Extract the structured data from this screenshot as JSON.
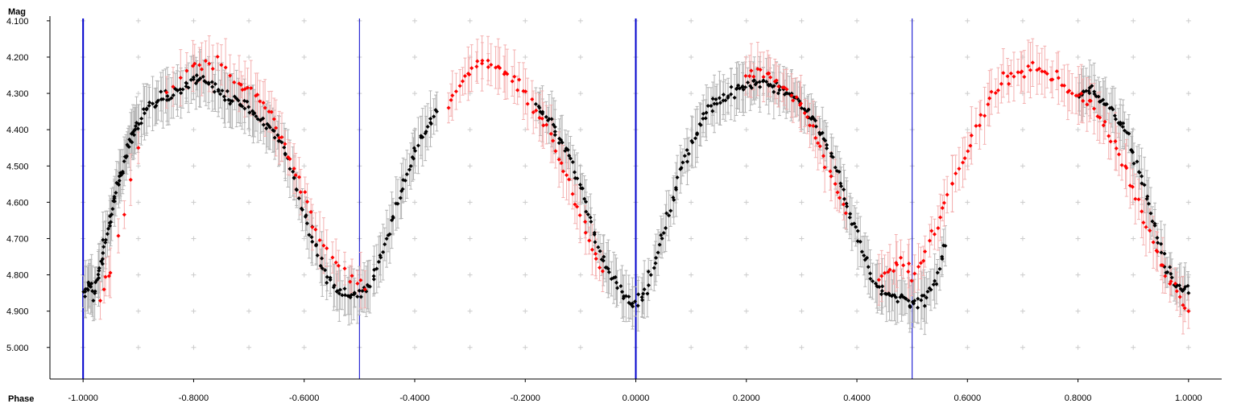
{
  "chart_data": {
    "type": "scatter",
    "title": "",
    "xlabel": "Phase",
    "ylabel": "Mag",
    "xlim": [
      -1.06,
      1.06
    ],
    "ylim": [
      4.087,
      5.087
    ],
    "y_inverted": true,
    "x_ticks": [
      -1.0,
      -0.8,
      -0.6,
      -0.4,
      -0.2,
      0.0,
      0.2,
      0.4,
      0.6,
      0.8,
      1.0
    ],
    "x_tick_labels": [
      "-1.0000",
      "-0.8000",
      "-0.6000",
      "-0.4000",
      "-0.2000",
      "0.0000",
      "0.2000",
      "0.4000",
      "0.6000",
      "0.8000",
      "1.0000"
    ],
    "y_ticks": [
      4.1,
      4.2,
      4.3,
      4.4,
      4.5,
      4.6,
      4.7,
      4.8,
      4.9,
      5.0
    ],
    "y_tick_labels": [
      "4.100",
      "4.200",
      "4.300",
      "4.400",
      "4.500",
      "4.600",
      "4.700",
      "4.800",
      "4.900",
      "5.000"
    ],
    "grid": "plus-markers",
    "legend": "none",
    "colors": {
      "series_black": "#000000",
      "series_red": "#ff0000",
      "error_black": "#b4b4b4",
      "error_red": "#f4b0b0",
      "marker_line": "#0000cc",
      "grid_marker": "#cccccc",
      "axis": "#000000"
    },
    "vertical_markers": [
      -1.0,
      -0.5,
      0.0,
      0.5
    ],
    "light_curve": {
      "description_model": "eclipsing-binary phase curve",
      "maxima": [
        {
          "phase": -0.77,
          "mag": 4.27
        },
        {
          "phase": -0.27,
          "mag": 4.25
        },
        {
          "phase": 0.23,
          "mag": 4.27
        },
        {
          "phase": 0.73,
          "mag": 4.25
        }
      ],
      "minima": [
        {
          "phase": -1.0,
          "mag": 4.88
        },
        {
          "phase": -0.5,
          "mag": 4.83
        },
        {
          "phase": 0.0,
          "mag": 4.88
        },
        {
          "phase": 0.5,
          "mag": 4.83
        }
      ]
    },
    "series": [
      {
        "color": "black",
        "points": [
          [
            -1.0,
            4.87
          ],
          [
            -0.99,
            4.82
          ],
          [
            -0.98,
            4.86
          ],
          [
            -0.97,
            4.78
          ],
          [
            -0.96,
            4.71
          ],
          [
            -0.95,
            4.64
          ],
          [
            -0.94,
            4.57
          ],
          [
            -0.93,
            4.52
          ],
          [
            -0.92,
            4.45
          ],
          [
            -0.91,
            4.42
          ],
          [
            -0.9,
            4.38
          ],
          [
            -0.88,
            4.34
          ],
          [
            -0.86,
            4.31
          ],
          [
            -0.84,
            4.3
          ],
          [
            -0.82,
            4.28
          ],
          [
            -0.8,
            4.26
          ],
          [
            -0.78,
            4.27
          ],
          [
            -0.76,
            4.29
          ],
          [
            -0.74,
            4.31
          ],
          [
            -0.72,
            4.32
          ],
          [
            -0.7,
            4.34
          ],
          [
            -0.68,
            4.37
          ],
          [
            -0.66,
            4.39
          ],
          [
            -0.64,
            4.44
          ],
          [
            -0.62,
            4.52
          ],
          [
            -0.6,
            4.63
          ],
          [
            -0.58,
            4.72
          ],
          [
            -0.56,
            4.8
          ],
          [
            -0.54,
            4.84
          ],
          [
            -0.52,
            4.86
          ],
          [
            -0.5,
            4.85
          ],
          [
            -0.48,
            4.83
          ],
          [
            -0.46,
            4.75
          ],
          [
            -0.44,
            4.65
          ],
          [
            -0.42,
            4.55
          ],
          [
            -0.4,
            4.46
          ],
          [
            -0.38,
            4.4
          ],
          [
            -0.36,
            4.35
          ],
          [
            -0.18,
            4.33
          ],
          [
            -0.16,
            4.37
          ],
          [
            -0.14,
            4.42
          ],
          [
            -0.12,
            4.47
          ],
          [
            -0.1,
            4.56
          ],
          [
            -0.08,
            4.66
          ],
          [
            -0.06,
            4.75
          ],
          [
            -0.04,
            4.81
          ],
          [
            -0.02,
            4.86
          ],
          [
            0.0,
            4.88
          ],
          [
            0.02,
            4.84
          ],
          [
            0.04,
            4.74
          ],
          [
            0.06,
            4.63
          ],
          [
            0.08,
            4.52
          ],
          [
            0.1,
            4.44
          ],
          [
            0.12,
            4.37
          ],
          [
            0.14,
            4.33
          ],
          [
            0.16,
            4.31
          ],
          [
            0.18,
            4.29
          ],
          [
            0.2,
            4.28
          ],
          [
            0.22,
            4.27
          ],
          [
            0.24,
            4.28
          ],
          [
            0.26,
            4.29
          ],
          [
            0.28,
            4.31
          ],
          [
            0.3,
            4.33
          ],
          [
            0.32,
            4.37
          ],
          [
            0.34,
            4.42
          ],
          [
            0.36,
            4.5
          ],
          [
            0.38,
            4.6
          ],
          [
            0.4,
            4.69
          ],
          [
            0.42,
            4.78
          ],
          [
            0.44,
            4.84
          ],
          [
            0.46,
            4.86
          ],
          [
            0.48,
            4.87
          ],
          [
            0.5,
            4.88
          ],
          [
            0.52,
            4.87
          ],
          [
            0.54,
            4.82
          ],
          [
            0.56,
            4.72
          ],
          [
            0.8,
            4.3
          ],
          [
            0.82,
            4.29
          ],
          [
            0.84,
            4.31
          ],
          [
            0.86,
            4.34
          ],
          [
            0.88,
            4.39
          ],
          [
            0.9,
            4.46
          ],
          [
            0.92,
            4.56
          ],
          [
            0.94,
            4.68
          ],
          [
            0.96,
            4.78
          ],
          [
            0.98,
            4.83
          ],
          [
            1.0,
            4.85
          ]
        ]
      },
      {
        "color": "red",
        "points": [
          [
            -0.97,
            4.87
          ],
          [
            -0.95,
            4.78
          ],
          [
            -0.9,
            4.45
          ],
          [
            -0.85,
            4.3
          ],
          [
            -0.8,
            4.23
          ],
          [
            -0.78,
            4.21
          ],
          [
            -0.75,
            4.22
          ],
          [
            -0.72,
            4.27
          ],
          [
            -0.7,
            4.29
          ],
          [
            -0.68,
            4.32
          ],
          [
            -0.66,
            4.36
          ],
          [
            -0.64,
            4.42
          ],
          [
            -0.62,
            4.51
          ],
          [
            -0.6,
            4.58
          ],
          [
            -0.58,
            4.68
          ],
          [
            -0.55,
            4.76
          ],
          [
            -0.52,
            4.8
          ],
          [
            -0.49,
            4.84
          ],
          [
            -0.34,
            4.35
          ],
          [
            -0.32,
            4.28
          ],
          [
            -0.3,
            4.24
          ],
          [
            -0.28,
            4.21
          ],
          [
            -0.26,
            4.22
          ],
          [
            -0.24,
            4.24
          ],
          [
            -0.22,
            4.26
          ],
          [
            -0.2,
            4.3
          ],
          [
            -0.18,
            4.35
          ],
          [
            -0.16,
            4.4
          ],
          [
            -0.14,
            4.48
          ],
          [
            -0.12,
            4.55
          ],
          [
            -0.1,
            4.64
          ],
          [
            -0.08,
            4.72
          ],
          [
            -0.06,
            4.79
          ],
          [
            0.2,
            4.25
          ],
          [
            0.22,
            4.24
          ],
          [
            0.24,
            4.25
          ],
          [
            0.26,
            4.27
          ],
          [
            0.28,
            4.3
          ],
          [
            0.3,
            4.34
          ],
          [
            0.32,
            4.4
          ],
          [
            0.34,
            4.47
          ],
          [
            0.36,
            4.55
          ],
          [
            0.38,
            4.63
          ],
          [
            0.44,
            4.8
          ],
          [
            0.46,
            4.79
          ],
          [
            0.48,
            4.77
          ],
          [
            0.5,
            4.8
          ],
          [
            0.52,
            4.76
          ],
          [
            0.54,
            4.68
          ],
          [
            0.56,
            4.6
          ],
          [
            0.58,
            4.52
          ],
          [
            0.6,
            4.45
          ],
          [
            0.62,
            4.38
          ],
          [
            0.64,
            4.32
          ],
          [
            0.66,
            4.27
          ],
          [
            0.68,
            4.25
          ],
          [
            0.7,
            4.24
          ],
          [
            0.72,
            4.23
          ],
          [
            0.74,
            4.24
          ],
          [
            0.76,
            4.26
          ],
          [
            0.78,
            4.29
          ],
          [
            0.8,
            4.31
          ],
          [
            0.82,
            4.33
          ],
          [
            0.84,
            4.36
          ],
          [
            0.86,
            4.41
          ],
          [
            0.88,
            4.48
          ],
          [
            0.9,
            4.56
          ],
          [
            0.92,
            4.64
          ],
          [
            0.94,
            4.73
          ],
          [
            0.96,
            4.8
          ],
          [
            0.98,
            4.85
          ],
          [
            1.0,
            4.9
          ]
        ]
      }
    ]
  }
}
